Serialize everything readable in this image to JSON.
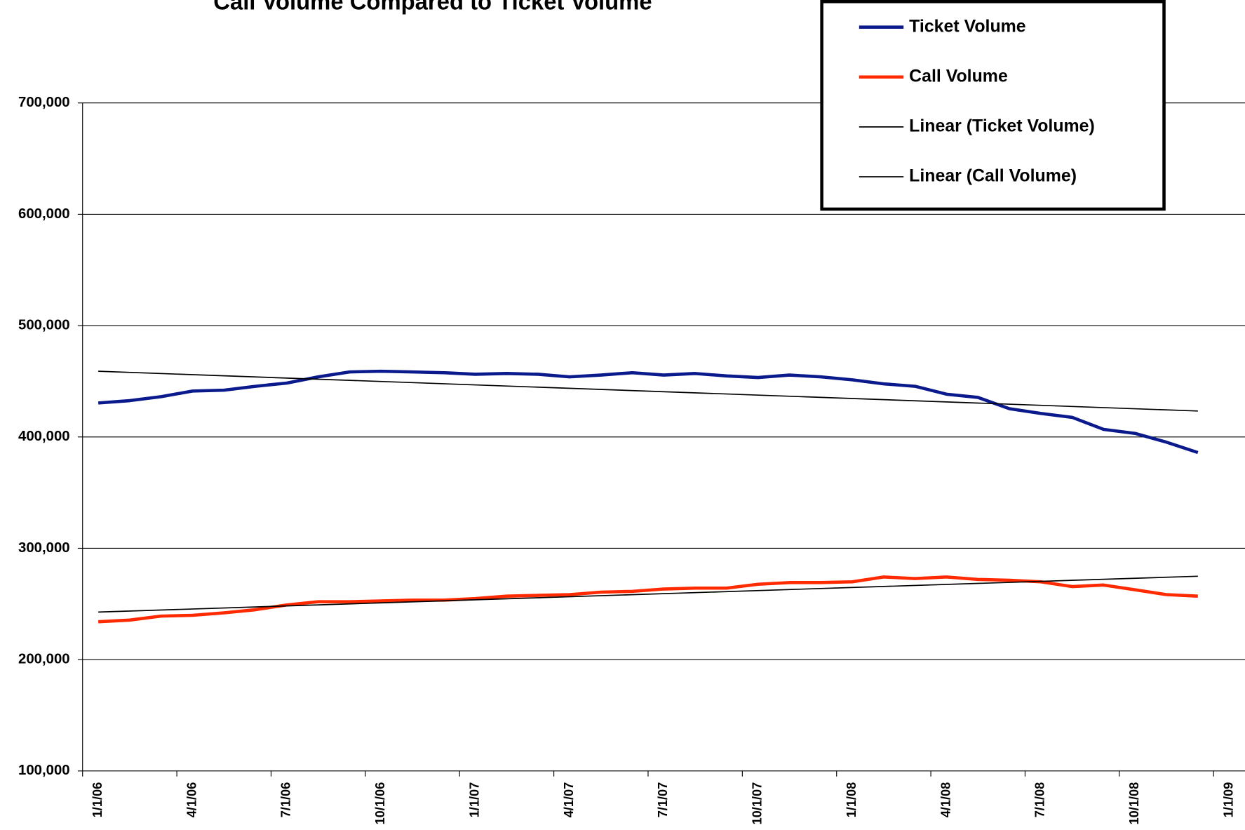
{
  "chart_data": {
    "type": "line",
    "title": "Call Volume Compared to Ticket Volume",
    "categories": [
      "1/1/06",
      null,
      null,
      "4/1/06",
      null,
      null,
      "7/1/06",
      null,
      null,
      "10/1/06",
      null,
      null,
      "1/1/07",
      null,
      null,
      "4/1/07",
      null,
      null,
      "7/1/07",
      null,
      null,
      "10/1/07",
      null,
      null,
      "1/1/08",
      null,
      null,
      "4/1/08",
      null,
      null,
      "7/1/08",
      null,
      null,
      "10/1/08",
      null,
      null,
      "1/1/09"
    ],
    "series": [
      {
        "name": "Ticket Volume",
        "color": "#0a1a8c",
        "values": [
          430500,
          432600,
          436200,
          441200,
          442000,
          445500,
          448400,
          454000,
          458400,
          459000,
          458400,
          457700,
          456300,
          457000,
          456300,
          454000,
          455600,
          457700,
          455600,
          457000,
          454800,
          453400,
          455600,
          454000,
          451300,
          447700,
          445500,
          438400,
          435500,
          425400,
          421100,
          417600,
          406800,
          403200,
          395300,
          386000,
          null
        ]
      },
      {
        "name": "Call Volume",
        "color": "#ff2a00",
        "values": [
          234000,
          235500,
          239100,
          239800,
          242000,
          244800,
          249100,
          252000,
          252000,
          252700,
          253400,
          253400,
          254800,
          257000,
          257700,
          258400,
          260600,
          261300,
          263400,
          264200,
          264200,
          267700,
          269200,
          269200,
          269900,
          274200,
          272800,
          274200,
          272000,
          271300,
          269900,
          265600,
          267000,
          262700,
          258400,
          257000,
          null
        ]
      }
    ],
    "trendlines": [
      {
        "name": "Linear (Ticket Volume)",
        "color": "#000000",
        "values": [
          459000,
          423300
        ]
      },
      {
        "name": "Linear (Call Volume)",
        "color": "#000000",
        "values": [
          242700,
          274900
        ]
      }
    ],
    "ylim": [
      100000,
      700000
    ],
    "yticks": [
      {
        "value": 100000,
        "label": "100,000"
      },
      {
        "value": 200000,
        "label": "200,000"
      },
      {
        "value": 300000,
        "label": "300,000"
      },
      {
        "value": 400000,
        "label": "400,000"
      },
      {
        "value": 500000,
        "label": "500,000"
      },
      {
        "value": 600000,
        "label": "600,000"
      },
      {
        "value": 700000,
        "label": "700,000"
      }
    ],
    "grid": true
  }
}
